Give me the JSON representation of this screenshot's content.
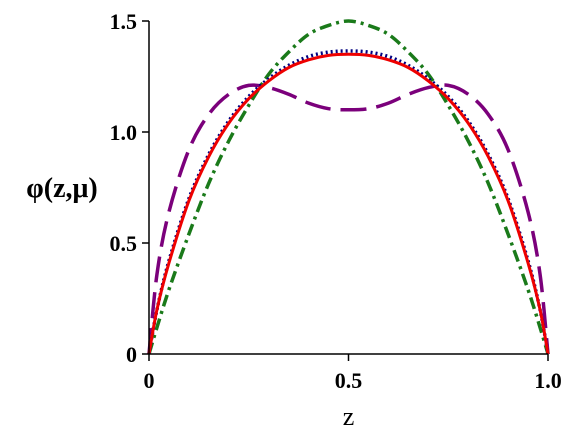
{
  "chart_data": {
    "type": "line",
    "title": "",
    "xlabel": "z",
    "ylabel": "φ(z,μ)",
    "xlim": [
      0,
      1
    ],
    "ylim": [
      0,
      1.5
    ],
    "grid": false,
    "x_ticks": [
      0,
      0.5,
      1.0
    ],
    "x_tick_labels": [
      "0",
      "0.5",
      "1.0"
    ],
    "y_ticks": [
      0,
      0.5,
      1.0,
      1.5
    ],
    "y_tick_labels": [
      "0",
      "0.5",
      "1.0",
      "1.5"
    ],
    "series": [
      {
        "color": "#7b007b",
        "style": "long-dash",
        "x": [
          0,
          0.02,
          0.05,
          0.1,
          0.15,
          0.2,
          0.25,
          0.3,
          0.35,
          0.4,
          0.45,
          0.5,
          0.55,
          0.6,
          0.65,
          0.7,
          0.75,
          0.8,
          0.85,
          0.9,
          0.95,
          0.98,
          1.0
        ],
        "y": [
          0,
          0.36,
          0.64,
          0.92,
          1.08,
          1.17,
          1.21,
          1.2,
          1.17,
          1.13,
          1.105,
          1.1,
          1.105,
          1.13,
          1.17,
          1.2,
          1.21,
          1.17,
          1.08,
          0.92,
          0.64,
          0.36,
          0
        ]
      },
      {
        "color": "#1a7a1a",
        "style": "dash-dot",
        "x": [
          0,
          0.02,
          0.05,
          0.1,
          0.15,
          0.2,
          0.25,
          0.3,
          0.35,
          0.4,
          0.45,
          0.5,
          0.55,
          0.6,
          0.65,
          0.7,
          0.75,
          0.8,
          0.85,
          0.9,
          0.95,
          0.98,
          1.0
        ],
        "y": [
          0,
          0.12,
          0.29,
          0.54,
          0.77,
          0.96,
          1.12,
          1.26,
          1.36,
          1.44,
          1.48,
          1.5,
          1.48,
          1.44,
          1.36,
          1.26,
          1.12,
          0.96,
          0.77,
          0.54,
          0.29,
          0.12,
          0
        ]
      },
      {
        "color": "#000080",
        "style": "dotted",
        "x": [
          0,
          0.02,
          0.05,
          0.1,
          0.15,
          0.2,
          0.25,
          0.3,
          0.35,
          0.4,
          0.45,
          0.5,
          0.55,
          0.6,
          0.65,
          0.7,
          0.75,
          0.8,
          0.85,
          0.9,
          0.95,
          0.98,
          1.0
        ],
        "y": [
          0,
          0.2,
          0.42,
          0.7,
          0.9,
          1.05,
          1.16,
          1.24,
          1.3,
          1.34,
          1.36,
          1.365,
          1.36,
          1.34,
          1.3,
          1.24,
          1.16,
          1.05,
          0.9,
          0.7,
          0.42,
          0.2,
          0
        ]
      },
      {
        "color": "#ee0000",
        "style": "solid",
        "x": [
          0,
          0.02,
          0.05,
          0.1,
          0.15,
          0.2,
          0.25,
          0.3,
          0.35,
          0.4,
          0.45,
          0.5,
          0.55,
          0.6,
          0.65,
          0.7,
          0.75,
          0.8,
          0.85,
          0.9,
          0.95,
          0.98,
          1.0
        ],
        "y": [
          0,
          0.2,
          0.41,
          0.69,
          0.89,
          1.04,
          1.15,
          1.23,
          1.29,
          1.325,
          1.345,
          1.35,
          1.345,
          1.325,
          1.29,
          1.23,
          1.15,
          1.04,
          0.89,
          0.69,
          0.41,
          0.2,
          0
        ]
      }
    ]
  }
}
